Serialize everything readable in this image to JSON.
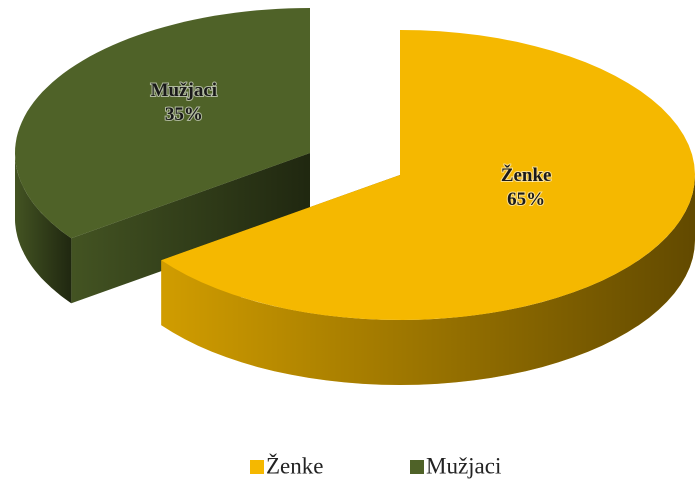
{
  "chart_data": {
    "type": "pie",
    "categories": [
      "Ženke",
      "Mužjaci"
    ],
    "values": [
      65,
      35
    ],
    "value_labels": [
      "65%",
      "35%"
    ],
    "colors": [
      "#f5b800",
      "#4f6228"
    ],
    "legend": "bottom"
  }
}
